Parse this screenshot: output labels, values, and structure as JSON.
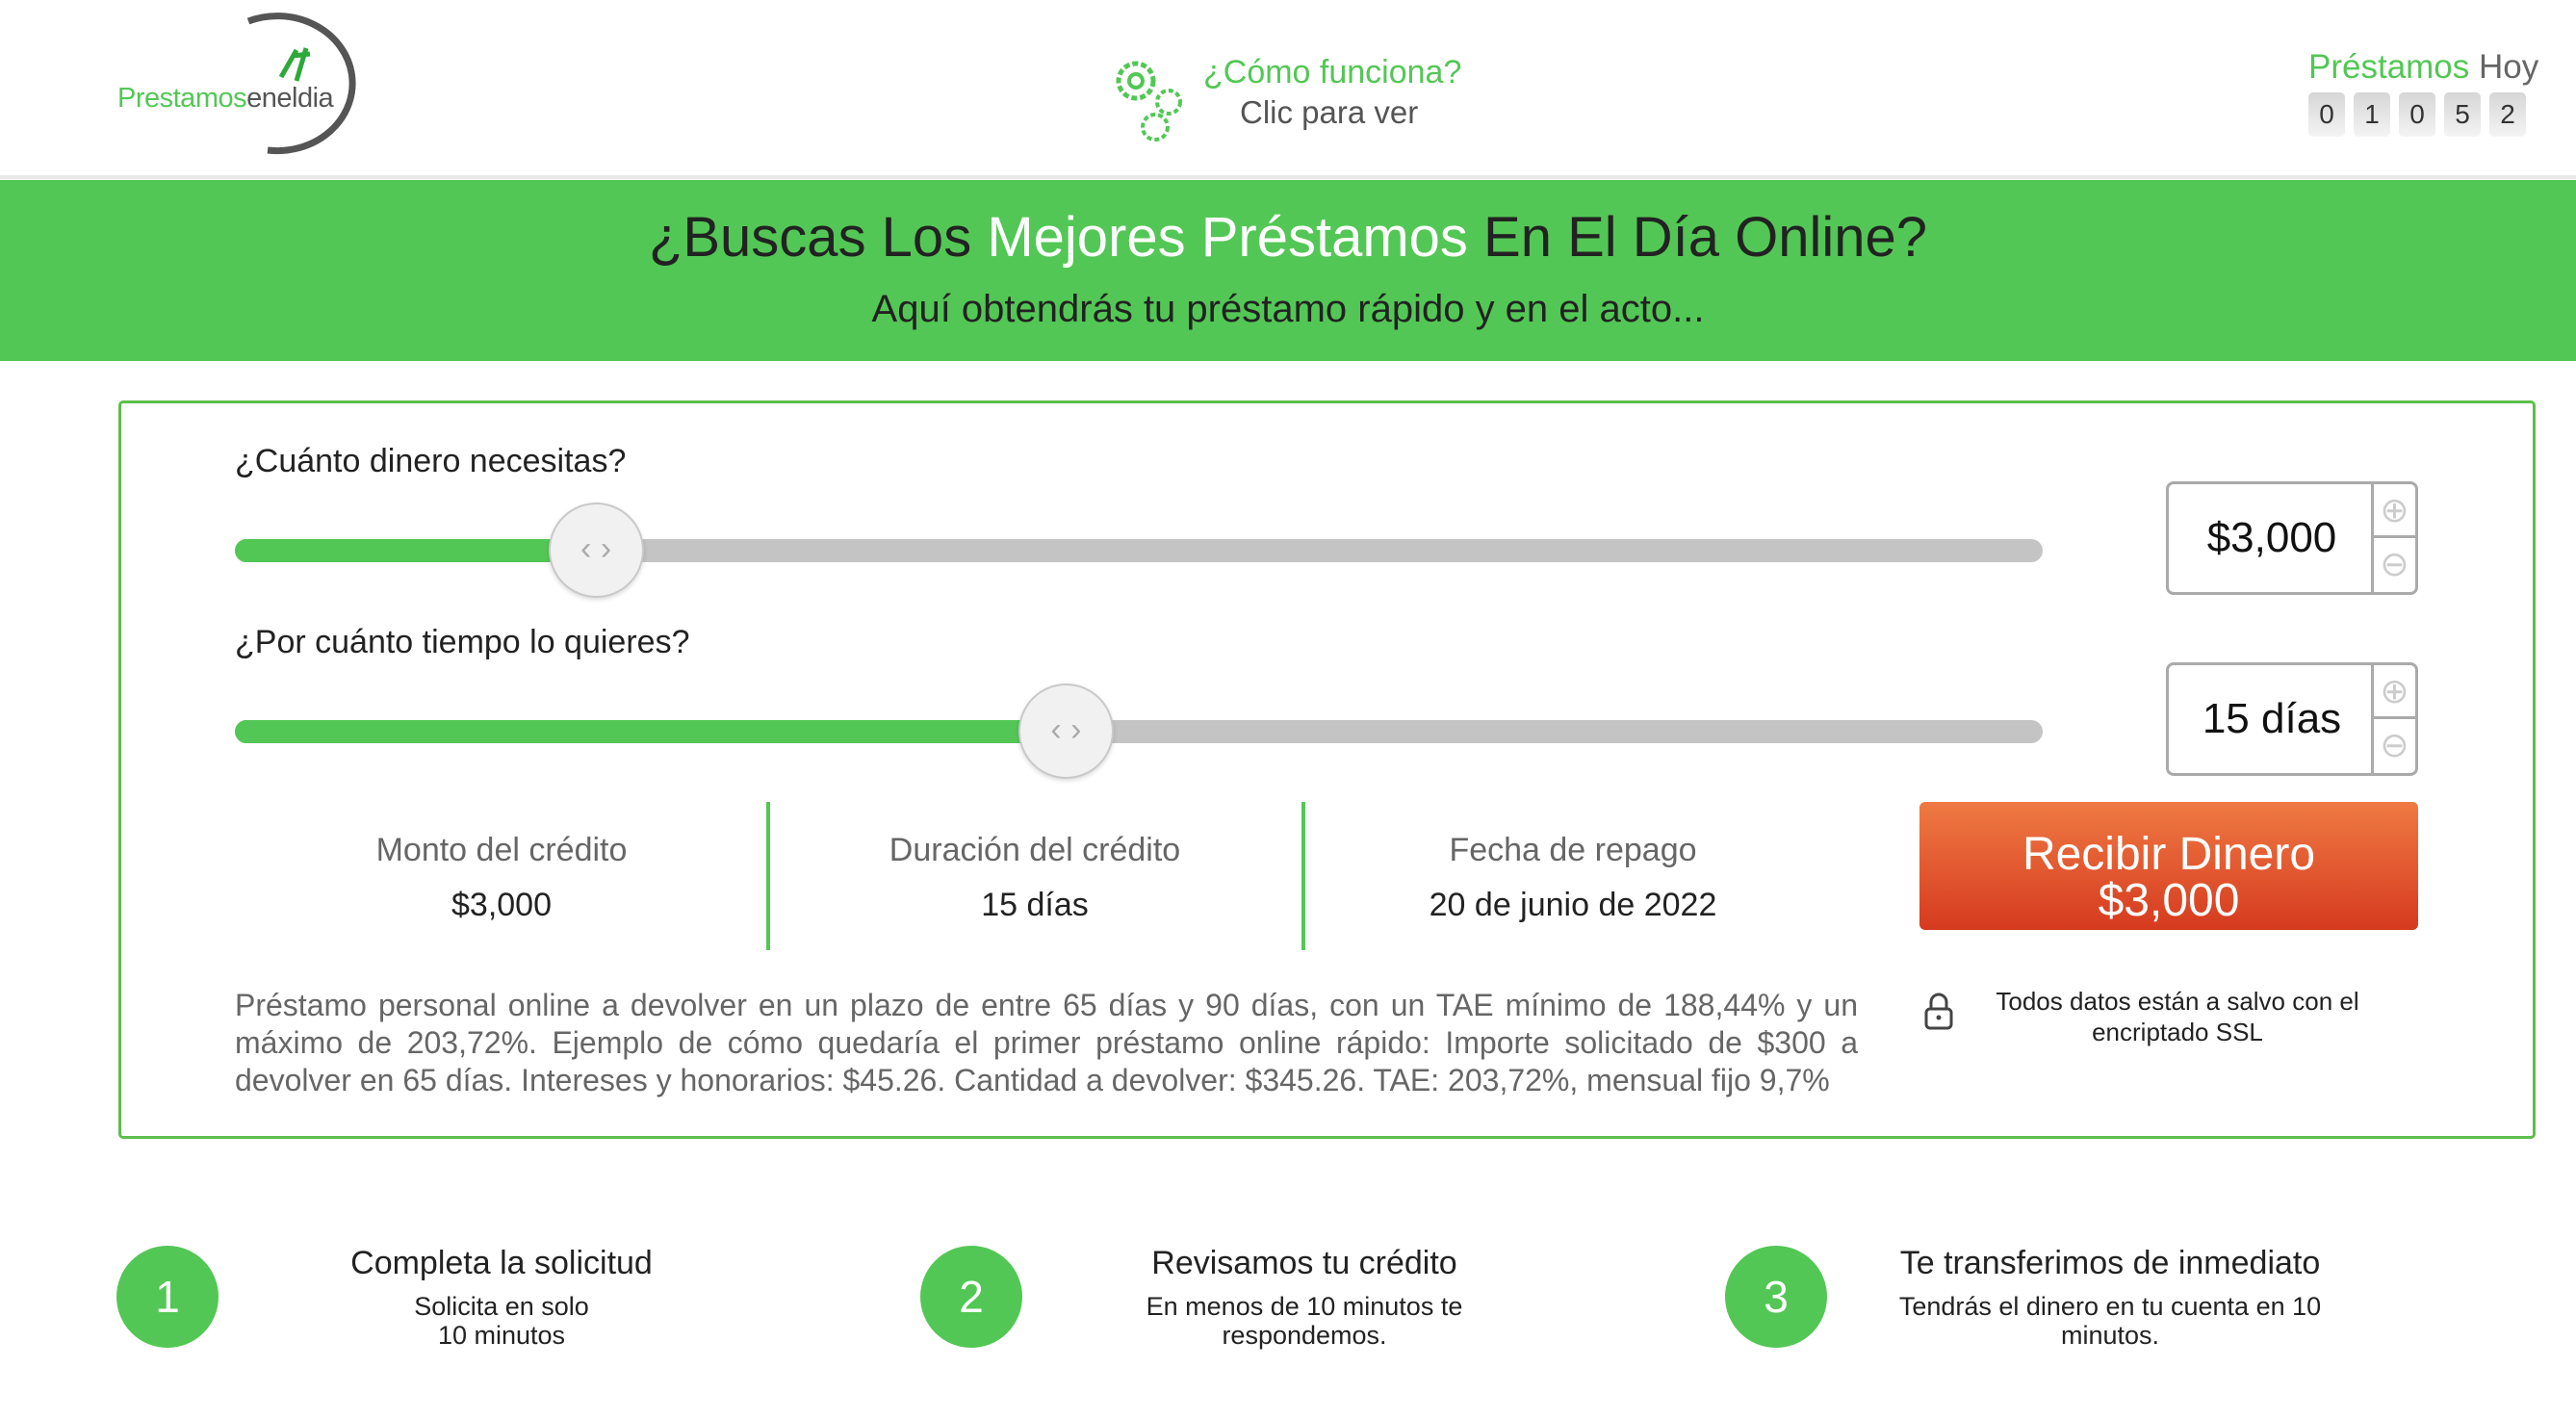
{
  "header": {
    "logo": {
      "part1": "Prestamos",
      "part2": "eneldia"
    },
    "how": {
      "title": "¿Cómo funciona?",
      "subtitle": "Clic para ver",
      "icon": "gears-icon"
    },
    "today": {
      "label_green": "Préstamos",
      "label_gray": "Hoy",
      "digits": [
        "0",
        "1",
        "0",
        "5",
        "2"
      ]
    }
  },
  "banner": {
    "title_a": "¿Buscas Los ",
    "title_b": "Mejores Préstamos",
    "title_c": " En El Día Online?",
    "subtitle": "Aquí obtendrás tu préstamo rápido y en el acto..."
  },
  "calculator": {
    "amount": {
      "label": "¿Cuánto dinero necesitas?",
      "value": "$3,000",
      "slider_fraction": 0.2
    },
    "term": {
      "label": "¿Por cuánto tiempo lo quieres?",
      "value": "15 días",
      "slider_fraction": 0.46
    },
    "summary": [
      {
        "label": "Monto del crédito",
        "value": "$3,000"
      },
      {
        "label": "Duración del crédito",
        "value": "15 días"
      },
      {
        "label": "Fecha de repago",
        "value": "20 de junio de 2022"
      }
    ],
    "button": {
      "line1": "Recibir Dinero",
      "line2": "$3,000"
    },
    "disclaimer": "Préstamo personal online a devolver en un plazo de entre 65 días y 90 días, con un TAE mínimo de 188,44% y un máximo de 203,72%. Ejemplo de cómo quedaría el primer préstamo online rápido: Importe solicitado de $300 a devolver en 65 días. Intereses y honorarios: $45.26. Cantidad a devolver: $345.26. TAE: 203,72%, mensual fijo 9,7%",
    "ssl": "Todos datos están a salvo con el encriptado SSL"
  },
  "steps": [
    {
      "num": "1",
      "title": "Completa la solicitud",
      "line1": "Solicita en solo",
      "line2": "10 minutos"
    },
    {
      "num": "2",
      "title": "Revisamos tu crédito",
      "line1": "En menos de 10 minutos te",
      "line2": "respondemos."
    },
    {
      "num": "3",
      "title": "Te transferimos de inmediato",
      "line1": "Tendrás el dinero en tu cuenta en 10",
      "line2": "minutos."
    }
  ],
  "colors": {
    "accent": "#53c755",
    "button_top": "#ef7a43",
    "button_bottom": "#d63a1f"
  }
}
